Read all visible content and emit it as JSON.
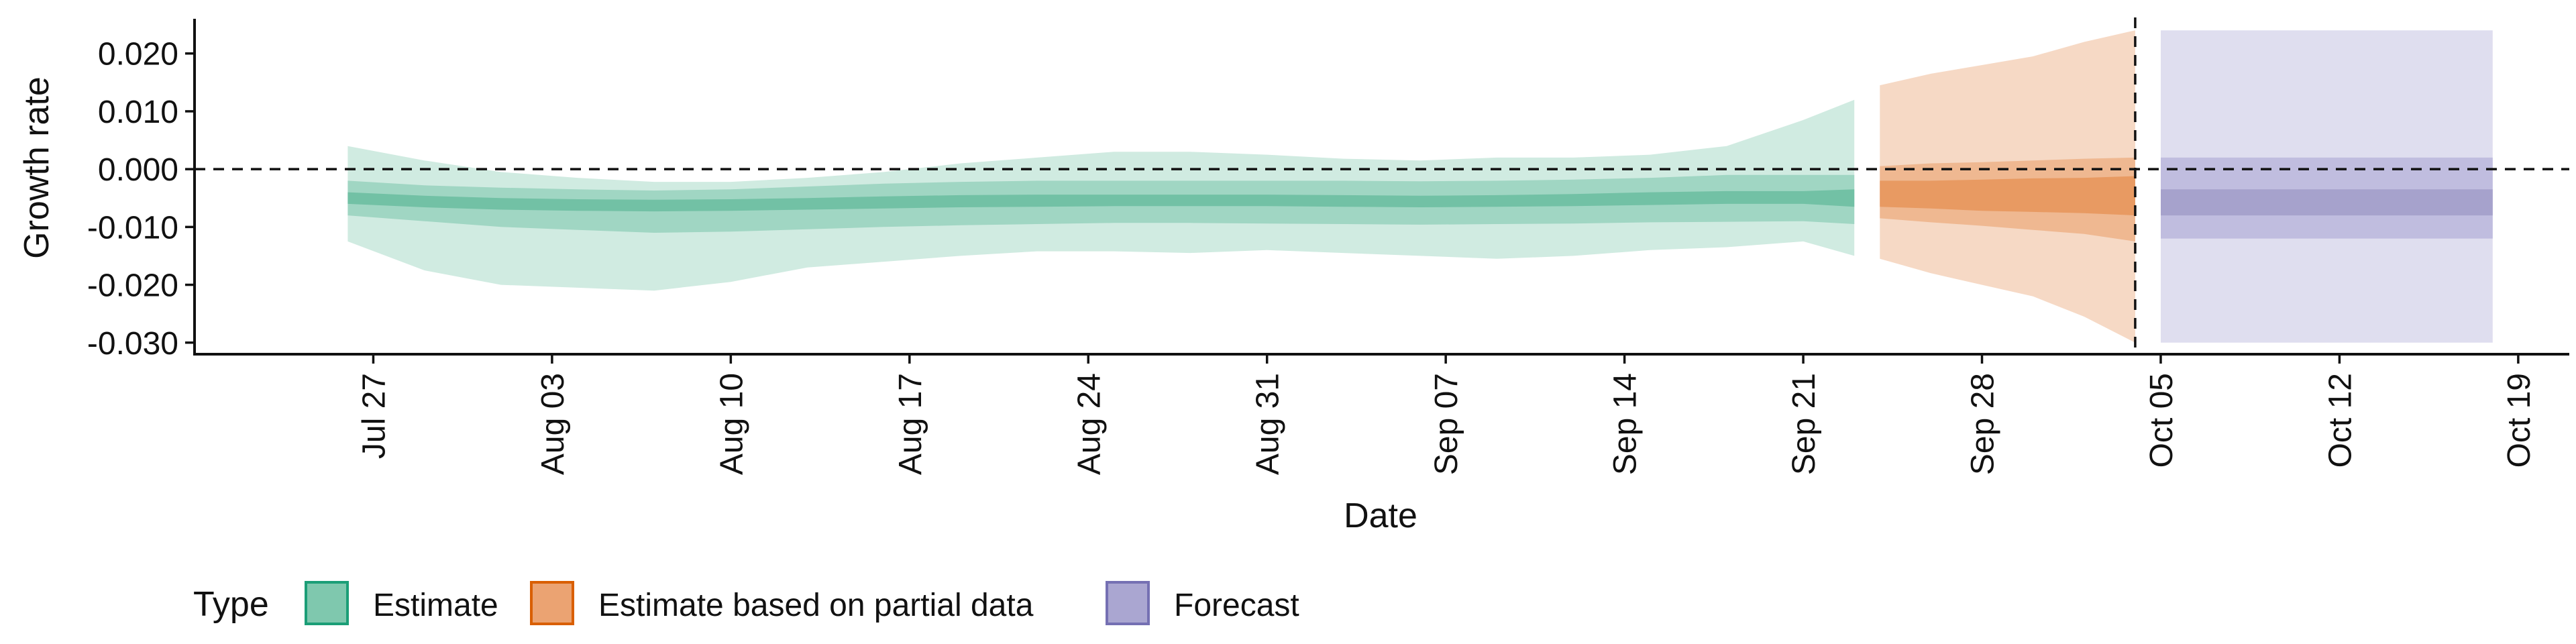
{
  "chart_data": {
    "type": "area",
    "xlabel": "Date",
    "ylabel": "Growth rate",
    "ylim": [
      -0.032,
      0.026
    ],
    "xlim": [
      "2021-07-20",
      "2021-10-21"
    ],
    "grid": false,
    "legend_position": "bottom-left",
    "y_ticks": [
      {
        "value": 0.02,
        "label": "0.020"
      },
      {
        "value": 0.01,
        "label": "0.010"
      },
      {
        "value": 0.0,
        "label": "0.000"
      },
      {
        "value": -0.01,
        "label": "-0.010"
      },
      {
        "value": -0.02,
        "label": "-0.020"
      },
      {
        "value": -0.03,
        "label": "-0.030"
      }
    ],
    "x_ticks": [
      {
        "date": "2021-07-27",
        "label": "Jul 27"
      },
      {
        "date": "2021-08-03",
        "label": "Aug 03"
      },
      {
        "date": "2021-08-10",
        "label": "Aug 10"
      },
      {
        "date": "2021-08-17",
        "label": "Aug 17"
      },
      {
        "date": "2021-08-24",
        "label": "Aug 24"
      },
      {
        "date": "2021-08-31",
        "label": "Aug 31"
      },
      {
        "date": "2021-09-07",
        "label": "Sep 07"
      },
      {
        "date": "2021-09-14",
        "label": "Sep 14"
      },
      {
        "date": "2021-09-21",
        "label": "Sep 21"
      },
      {
        "date": "2021-09-28",
        "label": "Sep 28"
      },
      {
        "date": "2021-10-05",
        "label": "Oct 05"
      },
      {
        "date": "2021-10-12",
        "label": "Oct 12"
      },
      {
        "date": "2021-10-19",
        "label": "Oct 19"
      }
    ],
    "reference_lines": {
      "y": 0.0,
      "date": "2021-10-04"
    },
    "legend": {
      "title": "Type",
      "items": [
        {
          "key": "estimate",
          "label": "Estimate",
          "fill": "#7fc8ae",
          "border": "#1b9e77"
        },
        {
          "key": "partial",
          "label": "Estimate based on partial data",
          "fill": "#eba372",
          "border": "#d95f02"
        },
        {
          "key": "forecast",
          "label": "Forecast",
          "fill": "#aaa6d1",
          "border": "#7570b3"
        }
      ]
    },
    "series": [
      {
        "key": "estimate",
        "colors": {
          "outer": "#d0ebe1",
          "mid": "#a0d6c3",
          "inner": "#72c1a5"
        },
        "dates": [
          "2021-07-26",
          "2021-07-29",
          "2021-08-01",
          "2021-08-04",
          "2021-08-07",
          "2021-08-10",
          "2021-08-13",
          "2021-08-16",
          "2021-08-19",
          "2021-08-22",
          "2021-08-25",
          "2021-08-28",
          "2021-08-31",
          "2021-09-03",
          "2021-09-06",
          "2021-09-09",
          "2021-09-12",
          "2021-09-15",
          "2021-09-18",
          "2021-09-21",
          "2021-09-23"
        ],
        "lower90": [
          -0.0125,
          -0.0175,
          -0.02,
          -0.0205,
          -0.021,
          -0.0195,
          -0.017,
          -0.016,
          -0.015,
          -0.0142,
          -0.0142,
          -0.0145,
          -0.014,
          -0.0145,
          -0.015,
          -0.0155,
          -0.015,
          -0.014,
          -0.0135,
          -0.0125,
          -0.015
        ],
        "upper90": [
          0.004,
          0.0015,
          -0.0005,
          -0.0015,
          -0.0022,
          -0.0022,
          -0.0015,
          -0.0005,
          0.001,
          0.002,
          0.003,
          0.003,
          0.0025,
          0.0018,
          0.0015,
          0.002,
          0.002,
          0.0025,
          0.004,
          0.0085,
          0.012
        ],
        "lower50": [
          -0.008,
          -0.009,
          -0.01,
          -0.0105,
          -0.011,
          -0.0108,
          -0.0104,
          -0.01,
          -0.0097,
          -0.0095,
          -0.0093,
          -0.0093,
          -0.0094,
          -0.0095,
          -0.0096,
          -0.0095,
          -0.0094,
          -0.0092,
          -0.0091,
          -0.009,
          -0.0095
        ],
        "upper50": [
          -0.002,
          -0.0028,
          -0.0032,
          -0.0035,
          -0.0037,
          -0.0035,
          -0.003,
          -0.0025,
          -0.0022,
          -0.002,
          -0.002,
          -0.002,
          -0.002,
          -0.002,
          -0.0021,
          -0.002,
          -0.0018,
          -0.0015,
          -0.001,
          -0.001,
          -0.001
        ],
        "lower20": [
          -0.006,
          -0.0066,
          -0.007,
          -0.0072,
          -0.0073,
          -0.0072,
          -0.007,
          -0.0068,
          -0.0066,
          -0.0065,
          -0.0064,
          -0.0064,
          -0.0064,
          -0.0065,
          -0.0066,
          -0.0065,
          -0.0064,
          -0.0062,
          -0.006,
          -0.006,
          -0.0065
        ],
        "upper20": [
          -0.004,
          -0.0046,
          -0.005,
          -0.0052,
          -0.0053,
          -0.0052,
          -0.005,
          -0.0047,
          -0.0045,
          -0.0044,
          -0.0044,
          -0.0044,
          -0.0044,
          -0.0045,
          -0.0046,
          -0.0045,
          -0.0043,
          -0.004,
          -0.0038,
          -0.0038,
          -0.0035
        ]
      },
      {
        "key": "partial",
        "colors": {
          "outer": "#f6d9c5",
          "mid": "#efb891",
          "inner": "#e89a62"
        },
        "dates": [
          "2021-09-24",
          "2021-09-26",
          "2021-09-28",
          "2021-09-30",
          "2021-10-02",
          "2021-10-04"
        ],
        "lower90": [
          -0.0155,
          -0.018,
          -0.02,
          -0.022,
          -0.0255,
          -0.03
        ],
        "upper90": [
          0.0145,
          0.0165,
          0.018,
          0.0195,
          0.022,
          0.024
        ],
        "lower50": [
          -0.0085,
          -0.0092,
          -0.0098,
          -0.0105,
          -0.0112,
          -0.0125
        ],
        "upper50": [
          0.0005,
          0.001,
          0.0012,
          0.0015,
          0.0018,
          0.002
        ],
        "lower20": [
          -0.0065,
          -0.0068,
          -0.0072,
          -0.0074,
          -0.0076,
          -0.008
        ],
        "upper20": [
          -0.002,
          -0.002,
          -0.0018,
          -0.0016,
          -0.0015,
          -0.0012
        ]
      },
      {
        "key": "forecast",
        "colors": {
          "outer": "#dfdeef",
          "mid": "#c0bddf",
          "inner": "#a6a2cc"
        },
        "dates": [
          "2021-10-05",
          "2021-10-18"
        ],
        "lower90": [
          -0.03,
          -0.03
        ],
        "upper90": [
          0.024,
          0.024
        ],
        "lower50": [
          -0.012,
          -0.012
        ],
        "upper50": [
          0.002,
          0.002
        ],
        "lower20": [
          -0.008,
          -0.008
        ],
        "upper20": [
          -0.0035,
          -0.0035
        ]
      }
    ]
  }
}
